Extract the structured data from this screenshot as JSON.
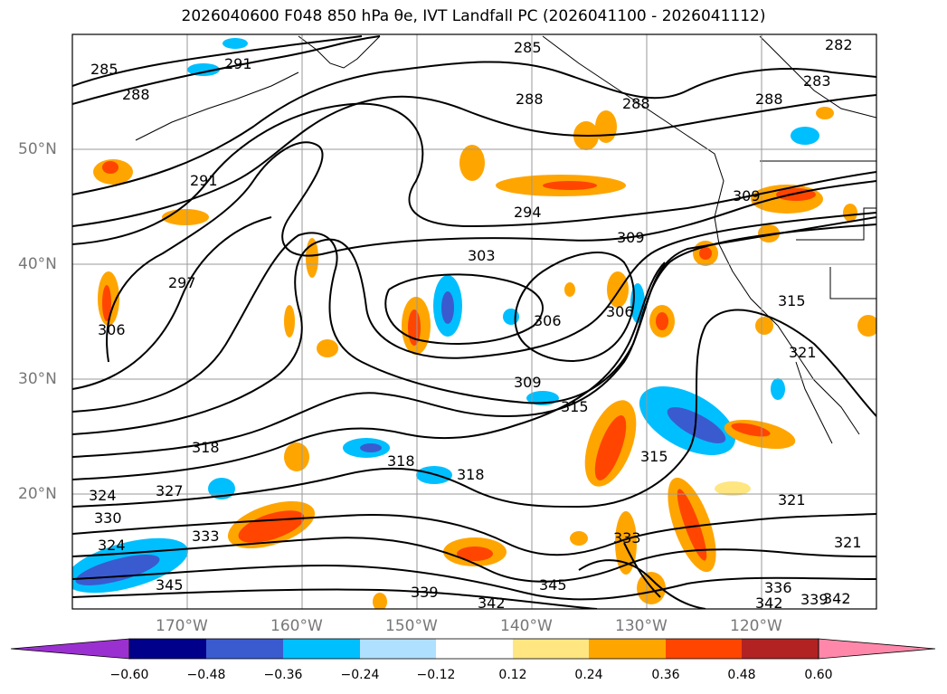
{
  "title": "2026040600 F048 850 hPa θe, IVT Landfall PC (2026041100 - 2026041112)",
  "map": {
    "lat_labels": [
      "50°N",
      "40°N",
      "30°N",
      "20°N"
    ],
    "lon_labels": [
      "170°W",
      "160°W",
      "150°W",
      "140°W",
      "130°W",
      "120°W"
    ],
    "contour_labels": [
      "285",
      "291",
      "288",
      "285",
      "288",
      "282",
      "283",
      "288",
      "288",
      "291",
      "294",
      "309",
      "303",
      "309",
      "297",
      "306",
      "306",
      "306",
      "309",
      "315",
      "318",
      "318",
      "315",
      "318",
      "321",
      "315",
      "324",
      "327",
      "321",
      "321",
      "333",
      "339",
      "342",
      "345",
      "345",
      "342",
      "336",
      "339",
      "342",
      "330",
      "333",
      "324"
    ]
  },
  "colorbar": {
    "ticks": [
      "−0.60",
      "−0.48",
      "−0.36",
      "−0.24",
      "−0.12",
      "0.12",
      "0.24",
      "0.36",
      "0.48",
      "0.60"
    ],
    "colors": [
      "#9b30d0",
      "#00008b",
      "#3a5bd0",
      "#00bfff",
      "#b0e0ff",
      "#ffffff",
      "#ffe680",
      "#ffa500",
      "#ff4500",
      "#b22222",
      "#ff88aa"
    ]
  }
}
